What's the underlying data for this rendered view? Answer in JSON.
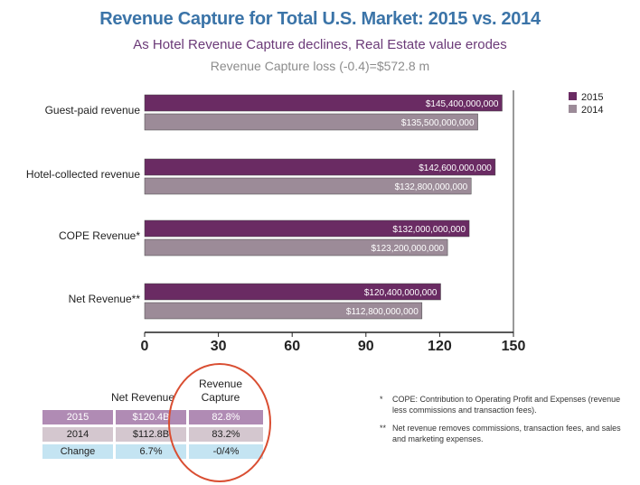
{
  "title": "Revenue Capture for Total U.S. Market: 2015 vs. 2014",
  "subtitle": "As Hotel Revenue Capture declines,  Real Estate value erodes",
  "subtitle2": "Revenue Capture loss (-0.4)=$572.8 m",
  "chart_data": {
    "type": "bar",
    "orientation": "horizontal",
    "categories": [
      "Guest-paid revenue",
      "Hotel-collected revenue",
      "COPE Revenue*",
      "Net Revenue**"
    ],
    "series": [
      {
        "name": "2015",
        "values": [
          145.4,
          142.6,
          132.0,
          120.4
        ],
        "labels": [
          "$145,400,000,000",
          "$142,600,000,000",
          "$132,000,000,000",
          "$120,400,000,000"
        ],
        "color": "#6a2b63"
      },
      {
        "name": "2014",
        "values": [
          135.5,
          132.8,
          123.2,
          112.8
        ],
        "labels": [
          "$135,500,000,000",
          "$132,800,000,000",
          "$123,200,000,000",
          "$112,800,000,000"
        ],
        "color": "#9c8b98"
      }
    ],
    "xlim": [
      0,
      150
    ],
    "xticks": [
      "0",
      "30",
      "60",
      "90",
      "120",
      "150"
    ],
    "legend": "top-right"
  },
  "summary_table": {
    "headers": [
      "Net Revenue",
      "Revenue Capture"
    ],
    "rows": [
      {
        "label": "2015",
        "net": "$120.4B",
        "capture": "82.8%"
      },
      {
        "label": "2014",
        "net": "$112.8B",
        "capture": "83.2%"
      },
      {
        "label": "Change",
        "net": "6.7%",
        "capture": "-0/4%"
      }
    ]
  },
  "footnotes": [
    {
      "mark": "*",
      "text": "COPE: Contribution to Operating Profit and Expenses (revenue less commissions and transaction fees)."
    },
    {
      "mark": "**",
      "text": "Net revenue removes commissions, transaction fees, and sales and marketing expenses."
    }
  ]
}
